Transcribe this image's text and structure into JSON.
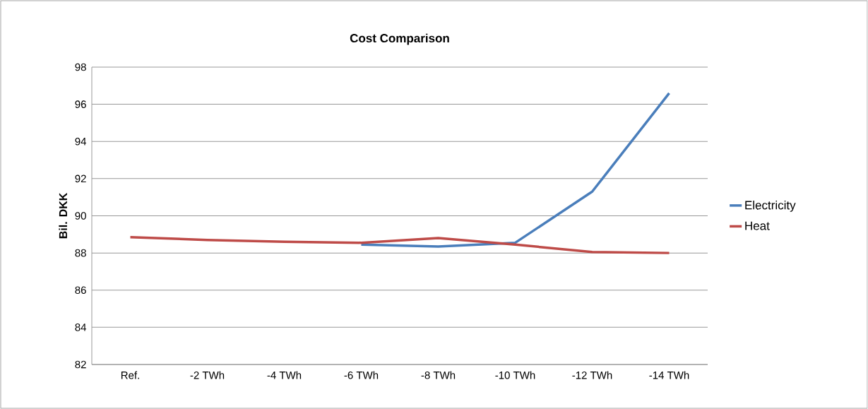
{
  "chart_data": {
    "type": "line",
    "title": "Cost Comparison",
    "ylabel": "Bil. DKK",
    "categories": [
      "Ref.",
      "-2 TWh",
      "-4 TWh",
      "-6 TWh",
      "-8 TWh",
      "-10 TWh",
      "-12 TWh",
      "-14 TWh"
    ],
    "series": [
      {
        "name": "Electricity",
        "color": "#4a7ebb",
        "values": [
          null,
          null,
          null,
          88.45,
          88.35,
          88.55,
          91.3,
          96.6
        ]
      },
      {
        "name": "Heat",
        "color": "#be4b48",
        "values": [
          88.85,
          88.7,
          88.6,
          88.55,
          88.8,
          88.45,
          88.05,
          88.0
        ]
      }
    ],
    "ylim": [
      82,
      98
    ],
    "yticks": [
      82,
      84,
      86,
      88,
      90,
      92,
      94,
      96,
      98
    ],
    "grid": "y",
    "legend": "right",
    "marker": "none",
    "line_style": "solid"
  }
}
